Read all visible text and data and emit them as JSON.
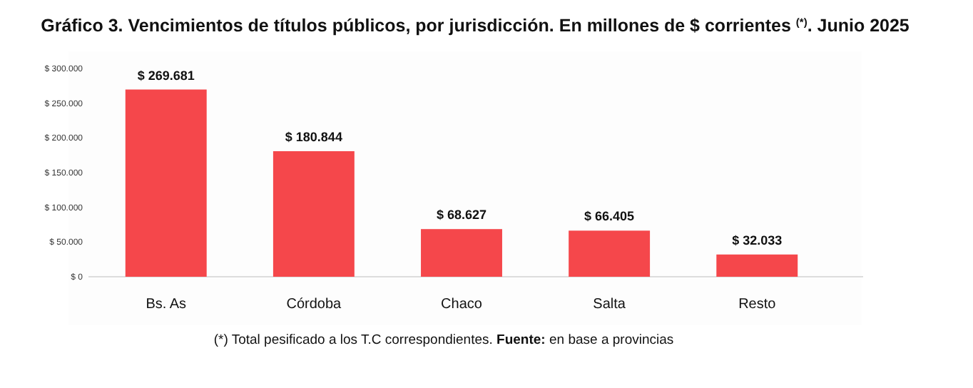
{
  "chart_data": {
    "type": "bar",
    "title": "Gráfico 3. Vencimientos de títulos públicos, por jurisdicción. En millones de $ corrientes $^{(*)}$. Junio 2025",
    "categories": [
      "Bs. As",
      "Córdoba",
      "Chaco",
      "Salta",
      "Resto"
    ],
    "values": [
      269681,
      180844,
      68627,
      66405,
      32033
    ],
    "value_labels": [
      "$ 269.681",
      "$ 180.844",
      "$ 68.627",
      "$ 66.405",
      "$ 32.033"
    ],
    "color": "#f5474b",
    "ylim": [
      0,
      300000
    ],
    "yticks": [
      {
        "value": 0,
        "label": "$ 0"
      },
      {
        "value": 50000,
        "label": "$ 50.000"
      },
      {
        "value": 100000,
        "label": "$ 100.000"
      },
      {
        "value": 150000,
        "label": "$ 150.000"
      },
      {
        "value": 200000,
        "label": "$ 200.000"
      },
      {
        "value": 250000,
        "label": "$ 250.000"
      },
      {
        "value": 300000,
        "label": "$ 300.000"
      }
    ],
    "grid": false,
    "annotations": [
      "(*) Total pesificado a los T.C correspondientes.",
      "Fuente: en base a provincias"
    ]
  }
}
